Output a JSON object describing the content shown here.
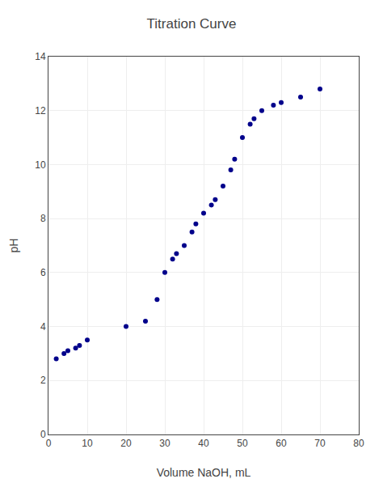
{
  "chart_data": {
    "type": "scatter",
    "title": "Titration Curve",
    "x_label": "Volume NaOH, mL",
    "y_label": "pH",
    "x": [
      2,
      4,
      5,
      7,
      8,
      10,
      20,
      25,
      28,
      30,
      32,
      33,
      35,
      37,
      38,
      40,
      42,
      43,
      45,
      47,
      48,
      50,
      52,
      53,
      55,
      58,
      60,
      65,
      70
    ],
    "values": [
      2.8,
      3.0,
      3.1,
      3.2,
      3.3,
      3.5,
      4.0,
      4.2,
      5.0,
      6.0,
      6.5,
      6.7,
      7.0,
      7.5,
      7.8,
      8.2,
      8.5,
      8.7,
      9.2,
      9.8,
      10.2,
      11.0,
      11.5,
      11.7,
      12.0,
      12.2,
      12.3,
      12.5,
      12.8
    ],
    "color": "#00008B",
    "xlim": [
      0,
      80
    ],
    "xticks": [
      0,
      10,
      20,
      30,
      40,
      50,
      60,
      70,
      80
    ],
    "ylim": [
      0,
      14
    ],
    "yticks": [
      0,
      2,
      4,
      6,
      8,
      10,
      12,
      14
    ],
    "grid": true
  }
}
